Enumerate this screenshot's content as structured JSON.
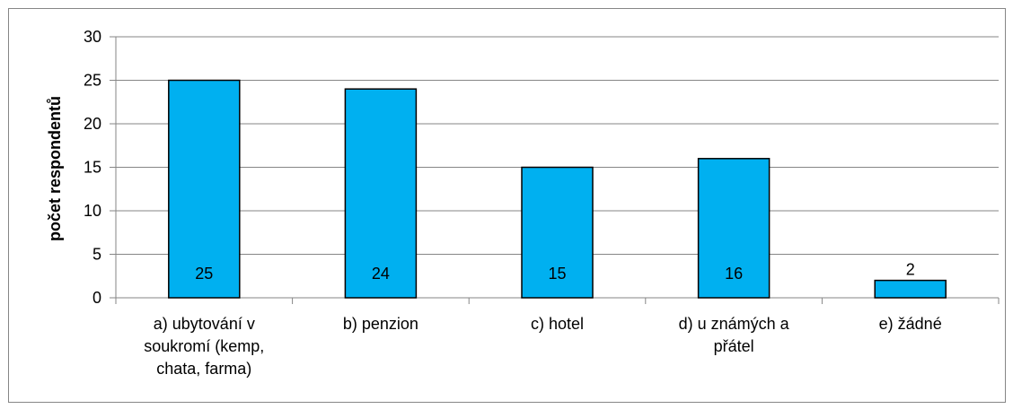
{
  "chart_data": {
    "type": "bar",
    "categories": [
      [
        "a) ubytování v",
        "soukromí (kemp,",
        "chata, farma)"
      ],
      [
        "b) penzion"
      ],
      [
        "c) hotel"
      ],
      [
        "d) u známých a",
        "přátel"
      ],
      [
        "e) žádné"
      ]
    ],
    "values": [
      25,
      24,
      15,
      16,
      2
    ],
    "data_labels": [
      "25",
      "24",
      "15",
      "16",
      "2"
    ],
    "ylabel": "počet respondentů",
    "xlabel": "",
    "title": "",
    "ylim": [
      0,
      30
    ],
    "yticks": [
      "0",
      "5",
      "10",
      "15",
      "20",
      "25",
      "30"
    ],
    "grid": true,
    "legend": "none",
    "colors": {
      "bar": "#00B0F0",
      "bar_border": "#000000",
      "grid": "#868686"
    }
  }
}
